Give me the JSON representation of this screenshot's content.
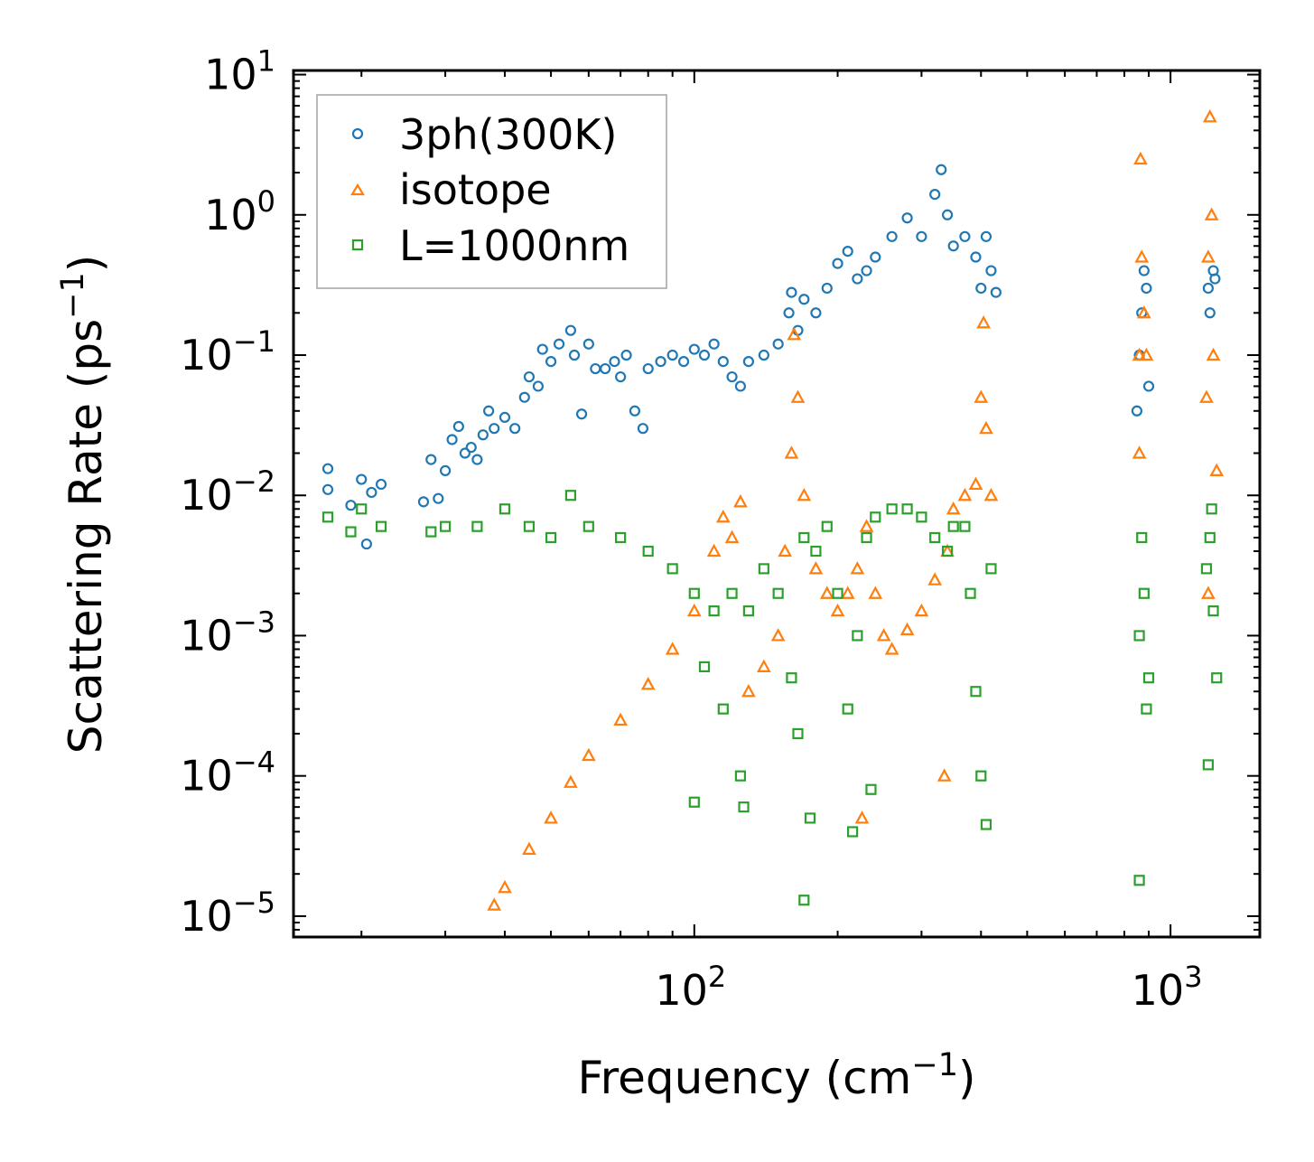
{
  "chart_data": {
    "type": "scatter",
    "title": "",
    "xlabel": "Frequency (cm",
    "xlabel_sup": "−1",
    "xlabel_end": ")",
    "ylabel": "Scattering Rate (ps",
    "ylabel_sup": "−1",
    "ylabel_end": ")",
    "xscale": "log",
    "yscale": "log",
    "xlim": [
      14.4,
      1540
    ],
    "ylim": [
      7.1e-06,
      10.7
    ],
    "x_ticks": [
      {
        "value": 100,
        "base": "10",
        "exp": "2"
      },
      {
        "value": 1000,
        "base": "10",
        "exp": "3"
      }
    ],
    "y_ticks": [
      {
        "value": 10,
        "base": "10",
        "exp": "1"
      },
      {
        "value": 1,
        "base": "10",
        "exp": "0"
      },
      {
        "value": 0.1,
        "base": "10",
        "exp": "−1"
      },
      {
        "value": 0.01,
        "base": "10",
        "exp": "−2"
      },
      {
        "value": 0.001,
        "base": "10",
        "exp": "−3"
      },
      {
        "value": 0.0001,
        "base": "10",
        "exp": "−4"
      },
      {
        "value": 1e-05,
        "base": "10",
        "exp": "−5"
      }
    ],
    "grid": false,
    "legend_position": "top-left",
    "series": [
      {
        "name": "3ph(300K)",
        "marker": "circle",
        "color": "#1f77b4",
        "points": [
          [
            17,
            0.0155
          ],
          [
            17,
            0.011
          ],
          [
            19,
            0.0085
          ],
          [
            20,
            0.013
          ],
          [
            20.5,
            0.0045
          ],
          [
            21,
            0.0105
          ],
          [
            22,
            0.012
          ],
          [
            27,
            0.009
          ],
          [
            28,
            0.018
          ],
          [
            29,
            0.0095
          ],
          [
            30,
            0.015
          ],
          [
            31,
            0.025
          ],
          [
            32,
            0.031
          ],
          [
            33,
            0.02
          ],
          [
            34,
            0.022
          ],
          [
            35,
            0.018
          ],
          [
            36,
            0.027
          ],
          [
            37,
            0.04
          ],
          [
            38,
            0.03
          ],
          [
            40,
            0.036
          ],
          [
            42,
            0.03
          ],
          [
            44,
            0.05
          ],
          [
            45,
            0.07
          ],
          [
            47,
            0.06
          ],
          [
            48,
            0.11
          ],
          [
            50,
            0.09
          ],
          [
            52,
            0.12
          ],
          [
            55,
            0.15
          ],
          [
            56,
            0.1
          ],
          [
            58,
            0.038
          ],
          [
            60,
            0.12
          ],
          [
            62,
            0.08
          ],
          [
            65,
            0.08
          ],
          [
            68,
            0.09
          ],
          [
            70,
            0.07
          ],
          [
            72,
            0.1
          ],
          [
            75,
            0.04
          ],
          [
            78,
            0.03
          ],
          [
            80,
            0.08
          ],
          [
            85,
            0.09
          ],
          [
            90,
            0.1
          ],
          [
            95,
            0.09
          ],
          [
            100,
            0.11
          ],
          [
            105,
            0.1
          ],
          [
            110,
            0.12
          ],
          [
            115,
            0.09
          ],
          [
            120,
            0.07
          ],
          [
            125,
            0.06
          ],
          [
            130,
            0.09
          ],
          [
            140,
            0.1
          ],
          [
            150,
            0.12
          ],
          [
            158,
            0.2
          ],
          [
            160,
            0.28
          ],
          [
            165,
            0.15
          ],
          [
            170,
            0.25
          ],
          [
            180,
            0.2
          ],
          [
            190,
            0.3
          ],
          [
            200,
            0.45
          ],
          [
            210,
            0.55
          ],
          [
            220,
            0.35
          ],
          [
            230,
            0.4
          ],
          [
            240,
            0.5
          ],
          [
            260,
            0.7
          ],
          [
            280,
            0.95
          ],
          [
            300,
            0.7
          ],
          [
            320,
            1.4
          ],
          [
            330,
            2.1
          ],
          [
            340,
            1.0
          ],
          [
            350,
            0.6
          ],
          [
            370,
            0.7
          ],
          [
            390,
            0.5
          ],
          [
            400,
            0.3
          ],
          [
            410,
            0.7
          ],
          [
            420,
            0.4
          ],
          [
            430,
            0.28
          ],
          [
            850,
            0.04
          ],
          [
            860,
            0.1
          ],
          [
            870,
            0.2
          ],
          [
            880,
            0.4
          ],
          [
            890,
            0.3
          ],
          [
            900,
            0.06
          ],
          [
            1200,
            0.3
          ],
          [
            1210,
            0.2
          ],
          [
            1230,
            0.4
          ],
          [
            1240,
            0.35
          ]
        ]
      },
      {
        "name": "isotope",
        "marker": "triangle",
        "color": "#ff7f0e",
        "points": [
          [
            38,
            1.2e-05
          ],
          [
            40,
            1.6e-05
          ],
          [
            45,
            3e-05
          ],
          [
            50,
            5e-05
          ],
          [
            55,
            9e-05
          ],
          [
            60,
            0.00014
          ],
          [
            70,
            0.00025
          ],
          [
            80,
            0.00045
          ],
          [
            90,
            0.0008
          ],
          [
            100,
            0.0015
          ],
          [
            110,
            0.004
          ],
          [
            115,
            0.007
          ],
          [
            120,
            0.005
          ],
          [
            125,
            0.009
          ],
          [
            130,
            0.0004
          ],
          [
            140,
            0.0006
          ],
          [
            150,
            0.001
          ],
          [
            155,
            0.004
          ],
          [
            160,
            0.02
          ],
          [
            162,
            0.14
          ],
          [
            165,
            0.05
          ],
          [
            170,
            0.01
          ],
          [
            180,
            0.003
          ],
          [
            190,
            0.002
          ],
          [
            200,
            0.0015
          ],
          [
            210,
            0.002
          ],
          [
            220,
            0.003
          ],
          [
            225,
            5e-05
          ],
          [
            230,
            0.006
          ],
          [
            240,
            0.002
          ],
          [
            250,
            0.001
          ],
          [
            260,
            0.0008
          ],
          [
            280,
            0.0011
          ],
          [
            300,
            0.0015
          ],
          [
            320,
            0.0025
          ],
          [
            335,
            0.0001
          ],
          [
            340,
            0.004
          ],
          [
            350,
            0.008
          ],
          [
            370,
            0.01
          ],
          [
            390,
            0.012
          ],
          [
            400,
            0.05
          ],
          [
            405,
            0.17
          ],
          [
            410,
            0.03
          ],
          [
            420,
            0.01
          ],
          [
            860,
            0.02
          ],
          [
            860,
            0.1
          ],
          [
            865,
            2.5
          ],
          [
            870,
            0.5
          ],
          [
            880,
            0.2
          ],
          [
            890,
            0.1
          ],
          [
            1190,
            0.05
          ],
          [
            1200,
            0.5
          ],
          [
            1210,
            5
          ],
          [
            1220,
            1
          ],
          [
            1230,
            0.1
          ],
          [
            1250,
            0.015
          ],
          [
            1200,
            0.002
          ]
        ]
      },
      {
        "name": "L=1000nm",
        "marker": "square",
        "color": "#2ca02c",
        "points": [
          [
            17,
            0.007
          ],
          [
            19,
            0.0055
          ],
          [
            20,
            0.008
          ],
          [
            22,
            0.006
          ],
          [
            28,
            0.0055
          ],
          [
            30,
            0.006
          ],
          [
            35,
            0.006
          ],
          [
            40,
            0.008
          ],
          [
            45,
            0.006
          ],
          [
            50,
            0.005
          ],
          [
            55,
            0.01
          ],
          [
            60,
            0.006
          ],
          [
            70,
            0.005
          ],
          [
            80,
            0.004
          ],
          [
            90,
            0.003
          ],
          [
            100,
            0.002
          ],
          [
            105,
            0.0006
          ],
          [
            110,
            0.0015
          ],
          [
            115,
            0.0003
          ],
          [
            120,
            0.002
          ],
          [
            125,
            0.0001
          ],
          [
            127,
            6e-05
          ],
          [
            100,
            6.5e-05
          ],
          [
            130,
            0.0015
          ],
          [
            140,
            0.003
          ],
          [
            150,
            0.002
          ],
          [
            160,
            0.0005
          ],
          [
            165,
            0.0002
          ],
          [
            170,
            0.005
          ],
          [
            175,
            5e-05
          ],
          [
            170,
            1.3e-05
          ],
          [
            180,
            0.004
          ],
          [
            190,
            0.006
          ],
          [
            200,
            0.002
          ],
          [
            210,
            0.0003
          ],
          [
            215,
            4e-05
          ],
          [
            220,
            0.001
          ],
          [
            230,
            0.005
          ],
          [
            235,
            8e-05
          ],
          [
            240,
            0.007
          ],
          [
            260,
            0.008
          ],
          [
            280,
            0.008
          ],
          [
            300,
            0.007
          ],
          [
            320,
            0.005
          ],
          [
            340,
            0.004
          ],
          [
            350,
            0.006
          ],
          [
            370,
            0.006
          ],
          [
            380,
            0.002
          ],
          [
            390,
            0.0004
          ],
          [
            400,
            0.0001
          ],
          [
            410,
            4.5e-05
          ],
          [
            420,
            0.003
          ],
          [
            860,
            0.001
          ],
          [
            860,
            1.8e-05
          ],
          [
            870,
            0.005
          ],
          [
            880,
            0.002
          ],
          [
            890,
            0.0003
          ],
          [
            900,
            0.0005
          ],
          [
            1190,
            0.003
          ],
          [
            1200,
            0.00012
          ],
          [
            1210,
            0.005
          ],
          [
            1220,
            0.008
          ],
          [
            1230,
            0.0015
          ],
          [
            1250,
            0.0005
          ]
        ]
      }
    ]
  }
}
